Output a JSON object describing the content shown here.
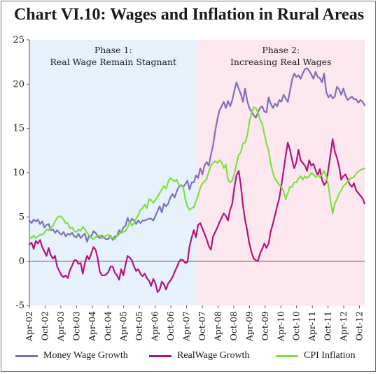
{
  "chart_data": {
    "type": "line",
    "title": "Chart VI.10: Wages and Inflation in Rural Areas",
    "xlabel": "",
    "ylabel": "",
    "ylim": [
      -5,
      25
    ],
    "yticks": [
      -5,
      0,
      5,
      10,
      15,
      20,
      25
    ],
    "x_start": "Apr-02",
    "x_end": "Dec-12",
    "xticks": [
      "Apr-02",
      "Oct-02",
      "Apr-03",
      "Oct-03",
      "Apr-04",
      "Oct-04",
      "Apr-05",
      "Oct-05",
      "Apr-06",
      "Oct-06",
      "Apr-07",
      "Oct-07",
      "Apr-08",
      "Oct-08",
      "Apr-09",
      "Oct-09",
      "Apr-10",
      "Oct-10",
      "Apr-11",
      "Oct-11",
      "Apr-12",
      "Oct-12"
    ],
    "phases": [
      {
        "label_line1": "Phase 1:",
        "label_line2": "Real Wage Remain Stagnant",
        "start": "Apr-02",
        "end": "Aug-07",
        "color": "#e6f1fb"
      },
      {
        "label_line1": "Phase 2:",
        "label_line2": "Increasing Real Wages",
        "start": "Aug-07",
        "end": "Dec-12",
        "color": "#fde7ef"
      }
    ],
    "series": [
      {
        "name": "Money Wage Growth",
        "color": "#7e6fb9",
        "values": [
          4.6,
          4.3,
          4.7,
          4.5,
          4.7,
          4.2,
          4.5,
          3.8,
          4.1,
          4.2,
          3.5,
          3.6,
          3.2,
          3.5,
          3.2,
          3.0,
          3.3,
          2.8,
          3.1,
          3.0,
          3.2,
          2.8,
          2.7,
          3.1,
          2.6,
          2.9,
          3.1,
          2.2,
          2.9,
          2.8,
          3.4,
          3.2,
          2.8,
          2.6,
          2.9,
          2.6,
          2.5,
          2.5,
          2.9,
          2.4,
          2.8,
          2.8,
          3.5,
          3.2,
          3.8,
          4.0,
          4.9,
          4.3,
          4.8,
          4.6,
          4.2,
          4.6,
          4.3,
          4.6,
          4.6,
          4.7,
          4.8,
          4.8,
          4.6,
          5.1,
          5.7,
          6.2,
          5.5,
          6.5,
          6.2,
          6.5,
          7.2,
          7.6,
          7.2,
          7.9,
          8.4,
          8.6,
          8.4,
          8.7,
          9.1,
          8.1,
          8.9,
          8.9,
          9.7,
          9.4,
          10.5,
          9.8,
          10.8,
          11.2,
          10.8,
          12.0,
          13.1,
          14.7,
          16.0,
          17.0,
          17.5,
          18.0,
          17.3,
          18.1,
          17.5,
          18.2,
          19.3,
          20.2,
          19.5,
          18.9,
          18.0,
          19.5,
          18.1,
          17.3,
          16.9,
          16.5,
          16.2,
          16.8,
          17.3,
          17.5,
          16.9,
          16.8,
          18.5,
          17.8,
          17.3,
          17.8,
          17.5,
          18.2,
          18.0,
          18.8,
          18.4,
          18.0,
          19.2,
          20.5,
          21.2,
          20.8,
          21.0,
          20.6,
          21.2,
          21.7,
          21.8,
          21.5,
          21.1,
          20.6,
          21.4,
          20.8,
          20.7,
          20.2,
          21.2,
          19.1,
          18.5,
          18.8,
          18.4,
          18.6,
          19.7,
          19.4,
          18.8,
          19.5,
          18.7,
          18.2,
          18.4,
          18.6,
          18.3,
          18.3,
          17.9,
          18.2,
          18.0,
          17.6
        ]
      },
      {
        "name": "RealWage Growth",
        "color": "#b4127d",
        "values": [
          1.9,
          2.1,
          1.4,
          2.3,
          2.0,
          2.4,
          1.6,
          1.1,
          0.6,
          1.5,
          0.7,
          0.3,
          0.6,
          -0.6,
          -1.1,
          -1.6,
          -1.8,
          -1.6,
          -1.9,
          -1.0,
          -0.5,
          0.1,
          0.1,
          -0.3,
          -0.2,
          -1.4,
          -0.2,
          0.6,
          0.2,
          0.9,
          1.6,
          1.3,
          0.3,
          -1.2,
          -1.6,
          -1.6,
          -1.5,
          -1.2,
          -0.6,
          -0.6,
          -1.3,
          -1.6,
          -2.1,
          -0.9,
          -1.6,
          -0.4,
          0.6,
          0.4,
          0.1,
          -0.6,
          -1.1,
          -0.9,
          -1.4,
          -1.7,
          -1.4,
          -1.9,
          -2.2,
          -2.8,
          -2.0,
          -2.5,
          -3.5,
          -3.2,
          -2.3,
          -2.6,
          -3.2,
          -2.5,
          -2.2,
          -1.8,
          -1.2,
          -0.7,
          -0.1,
          0.2,
          0.1,
          -0.2,
          -0.1,
          1.7,
          2.7,
          3.5,
          2.7,
          4.1,
          4.3,
          3.7,
          3.1,
          2.5,
          1.7,
          1.3,
          2.8,
          3.3,
          3.8,
          4.4,
          4.9,
          5.4,
          5.1,
          4.6,
          5.8,
          6.5,
          8.4,
          9.7,
          10.2,
          8.6,
          6.3,
          4.7,
          3.4,
          2.0,
          1.0,
          0.3,
          0.1,
          0.0,
          0.9,
          1.4,
          2.0,
          1.5,
          2.0,
          3.4,
          4.2,
          5.2,
          6.2,
          7.1,
          8.6,
          10.2,
          11.9,
          13.4,
          12.6,
          11.4,
          10.5,
          11.2,
          12.6,
          11.4,
          11.1,
          10.8,
          10.2,
          11.4,
          10.8,
          11.0,
          10.3,
          9.7,
          10.4,
          9.2,
          8.6,
          8.9,
          10.4,
          12.1,
          13.8,
          12.4,
          11.7,
          10.7,
          9.2,
          9.6,
          9.8,
          9.3,
          8.7,
          8.4,
          8.8,
          8.0,
          7.7,
          7.4,
          7.1,
          6.5
        ]
      },
      {
        "name": "CPI Inflation",
        "color": "#7ee03f",
        "values": [
          2.8,
          2.6,
          2.9,
          2.6,
          2.8,
          3.0,
          3.0,
          3.2,
          3.6,
          3.5,
          3.8,
          4.0,
          4.5,
          4.9,
          5.1,
          5.0,
          4.7,
          4.3,
          4.3,
          3.7,
          3.8,
          3.4,
          3.3,
          3.6,
          3.4,
          3.9,
          3.6,
          3.2,
          2.9,
          2.6,
          2.5,
          2.7,
          2.9,
          2.9,
          2.6,
          2.7,
          2.9,
          3.0,
          2.8,
          2.6,
          2.5,
          2.8,
          3.0,
          3.5,
          3.3,
          3.4,
          3.8,
          4.5,
          4.0,
          4.3,
          4.8,
          5.2,
          5.8,
          6.0,
          6.4,
          6.0,
          7.0,
          6.9,
          6.6,
          6.9,
          7.3,
          7.7,
          8.1,
          8.5,
          8.2,
          9.0,
          9.4,
          9.2,
          9.0,
          9.2,
          8.6,
          8.5,
          8.4,
          7.0,
          6.2,
          5.8,
          6.0,
          6.1,
          6.8,
          7.4,
          8.3,
          8.8,
          9.0,
          9.3,
          10.1,
          10.8,
          11.1,
          11.3,
          11.1,
          11.4,
          11.2,
          10.5,
          10.9,
          9.2,
          8.9,
          9.1,
          9.9,
          11.0,
          12.0,
          12.3,
          13.3,
          13.4,
          14.2,
          15.7,
          16.7,
          17.4,
          17.3,
          16.8,
          16.0,
          15.5,
          14.4,
          13.3,
          12.5,
          11.0,
          10.0,
          9.3,
          9.0,
          8.6,
          8.4,
          7.9,
          7.0,
          7.7,
          8.4,
          8.4,
          8.9,
          8.9,
          9.3,
          9.6,
          9.2,
          9.6,
          9.4,
          9.6,
          10.0,
          9.8,
          9.5,
          9.7,
          9.5,
          9.8,
          10.2,
          9.6,
          8.6,
          6.8,
          5.4,
          6.5,
          7.0,
          7.6,
          8.0,
          8.5,
          8.7,
          9.0,
          9.3,
          9.4,
          9.5,
          9.9,
          10.1,
          10.3,
          10.4,
          10.5
        ]
      }
    ],
    "legend": {
      "position": "bottom"
    }
  }
}
